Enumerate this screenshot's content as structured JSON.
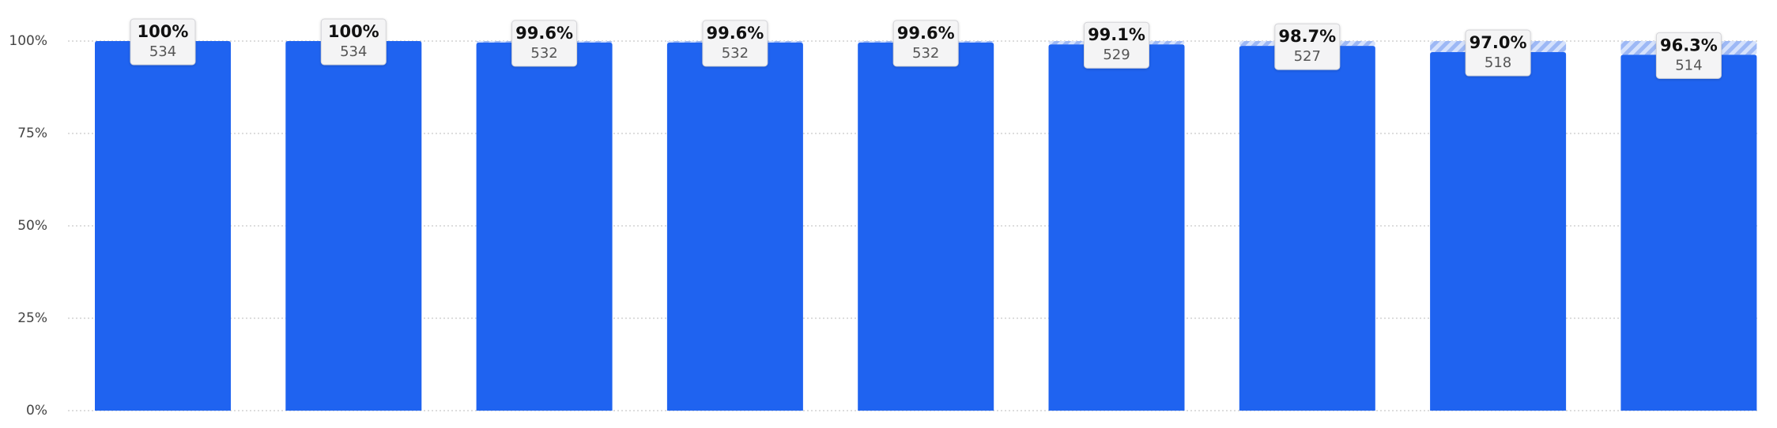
{
  "chart_data": {
    "type": "bar",
    "categories": [
      null,
      null,
      null,
      null,
      null,
      null,
      null,
      null,
      null
    ],
    "values": [
      100,
      100,
      99.6,
      99.6,
      99.6,
      99.1,
      98.7,
      97.0,
      96.3
    ],
    "value_labels": [
      "100%",
      "100%",
      "99.6%",
      "99.6%",
      "99.6%",
      "99.1%",
      "98.7%",
      "97.0%",
      "96.3%"
    ],
    "counts": [
      534,
      534,
      532,
      532,
      532,
      529,
      527,
      518,
      514
    ],
    "color": "#1f63f0",
    "ylim": [
      0,
      100
    ],
    "yticks": [
      {
        "value": 0,
        "label": "0%"
      },
      {
        "value": 25,
        "label": "25%"
      },
      {
        "value": 50,
        "label": "50%"
      },
      {
        "value": 75,
        "label": "75%"
      },
      {
        "value": 100,
        "label": "100%"
      }
    ],
    "grid": true
  }
}
